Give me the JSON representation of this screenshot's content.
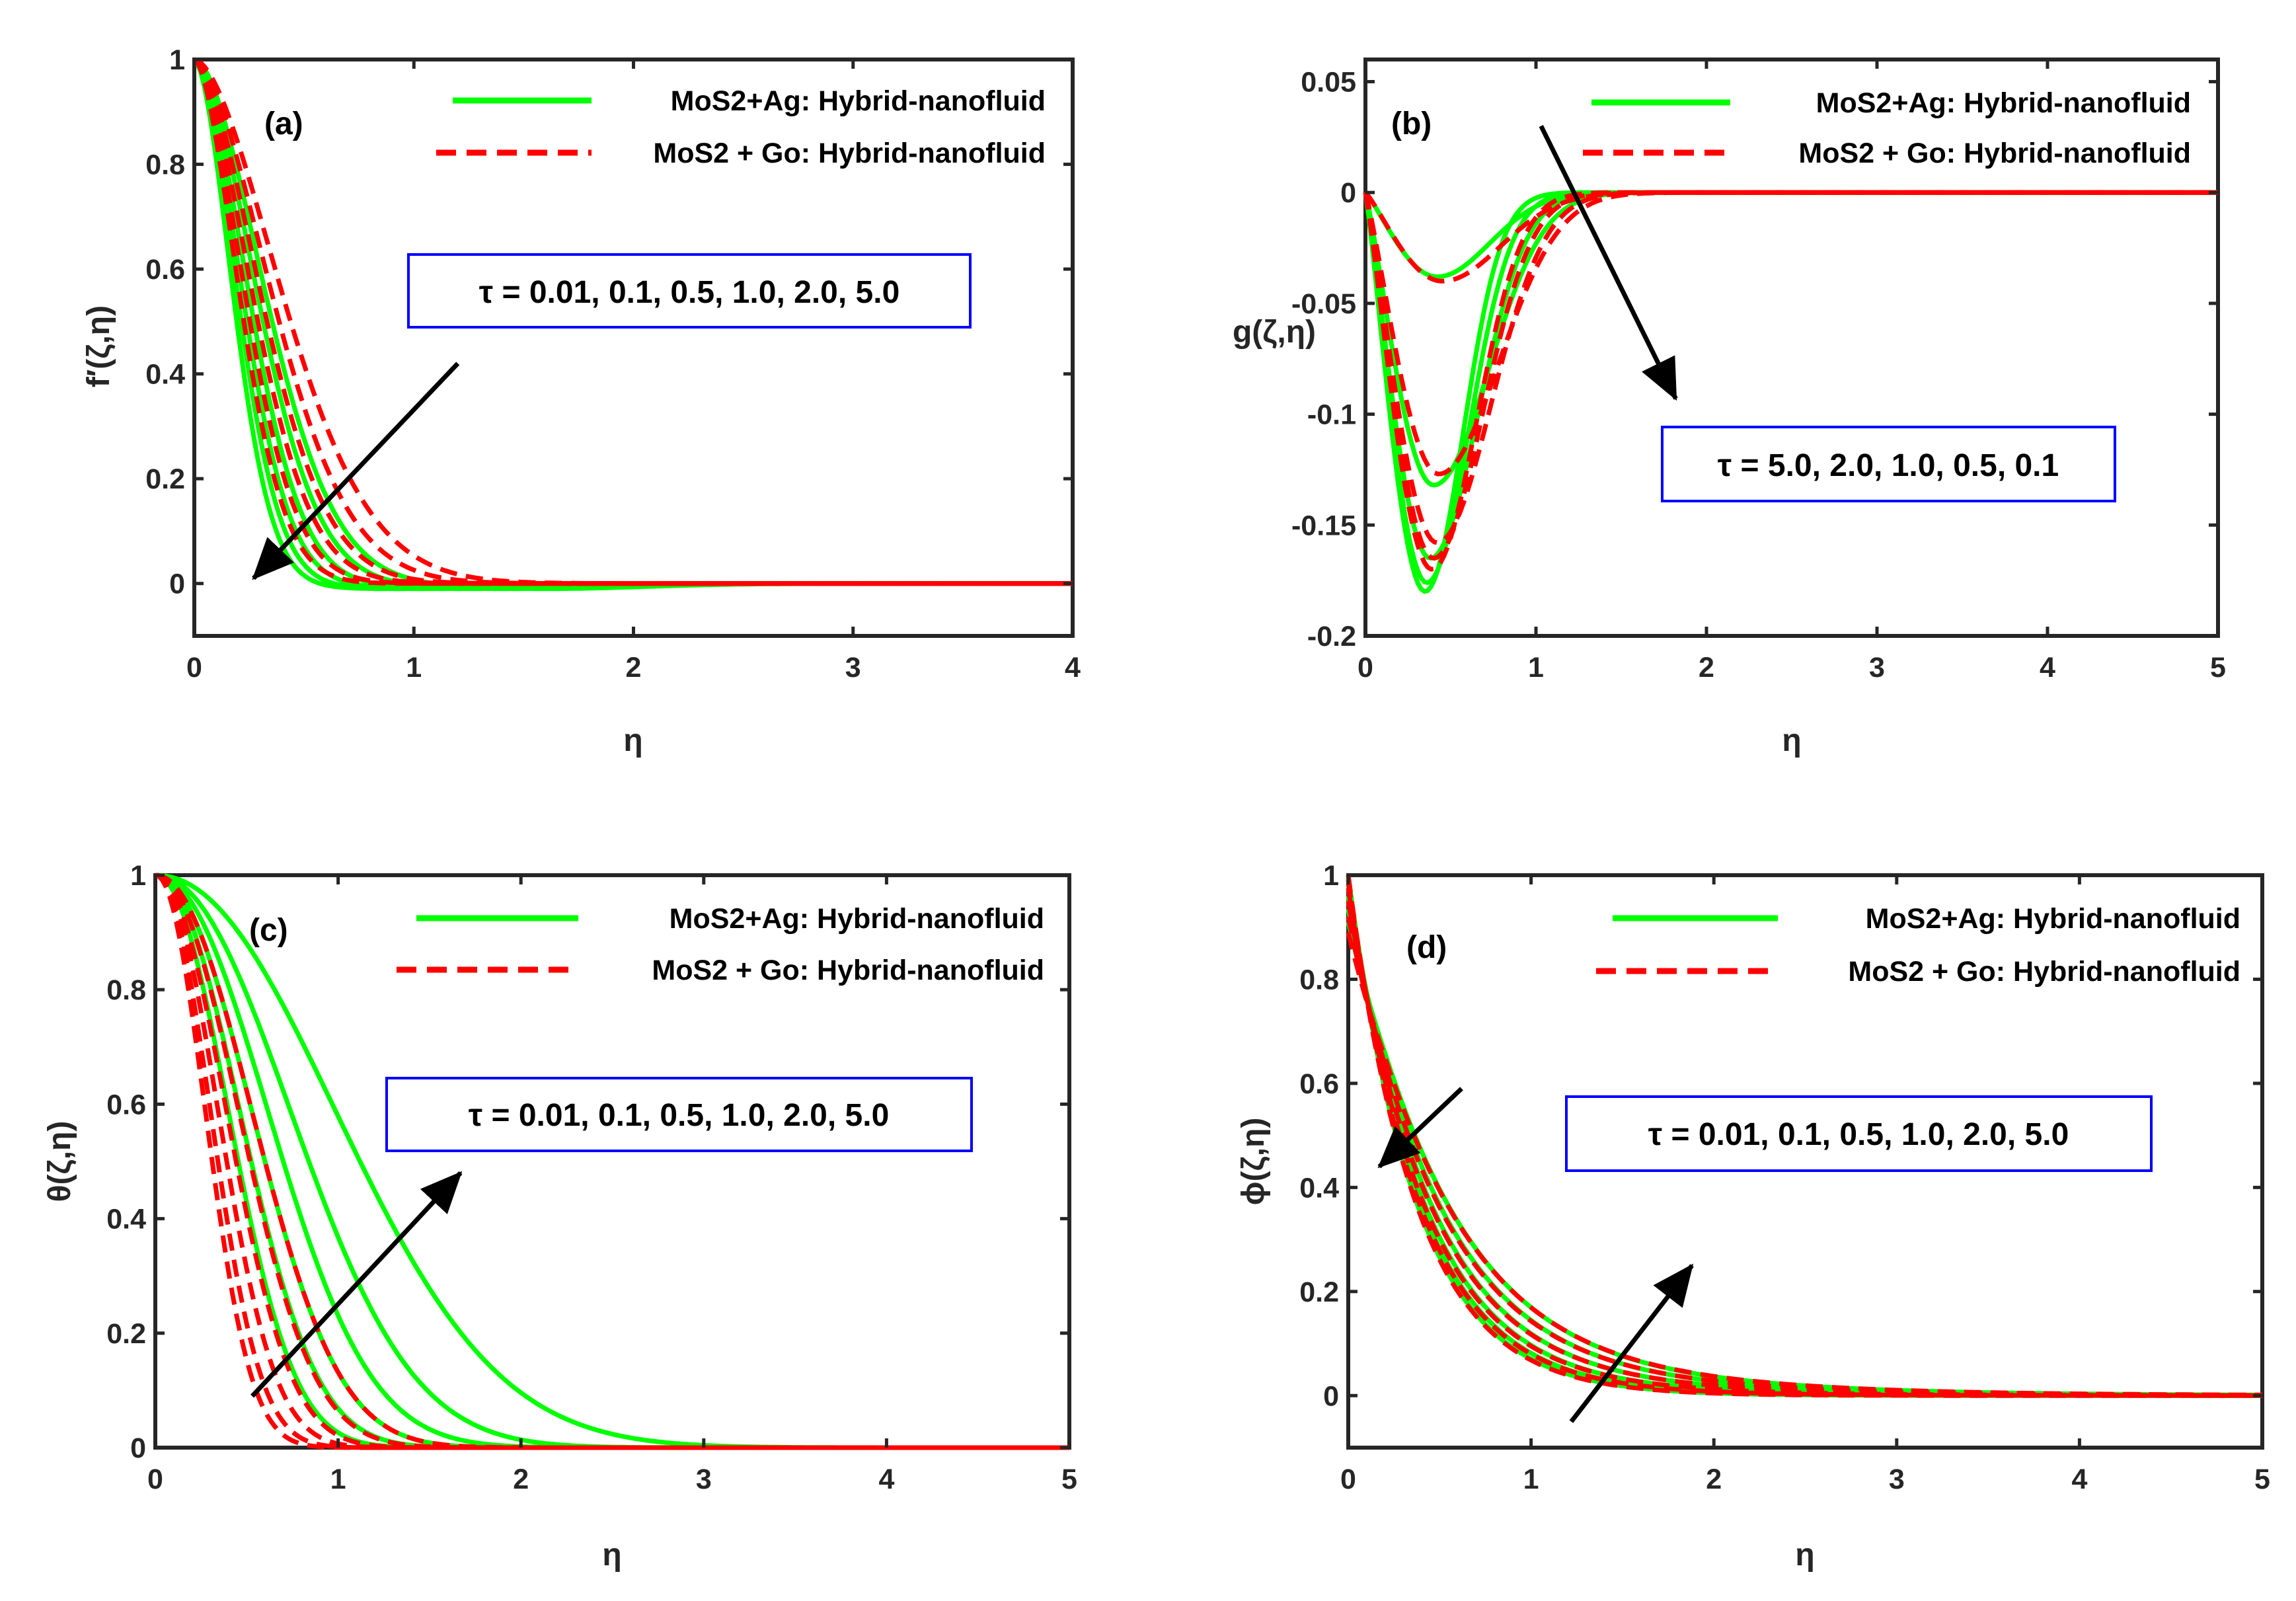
{
  "colors": {
    "hybrid_ag": "#00ff00",
    "hybrid_go": "#ff0000",
    "box_border": "#0000ff",
    "axis": "#262626",
    "arrow": "#000000"
  },
  "chart_data": [
    {
      "panel": "(a)",
      "type": "line",
      "xlabel": "η",
      "ylabel": "f′(ζ,η)",
      "xlim": [
        0,
        4
      ],
      "ylim": [
        -0.1,
        1
      ],
      "xticks": [
        "0",
        "1",
        "2",
        "3",
        "4"
      ],
      "yticks": [
        "0",
        "0.2",
        "0.4",
        "0.6",
        "0.8",
        "1"
      ],
      "ytick_values": [
        0,
        0.2,
        0.4,
        0.6,
        0.8,
        1
      ],
      "legend": [
        "MoS2+Ag: Hybrid-nanofluid",
        "MoS2 + Go: Hybrid-nanofluid"
      ],
      "legend_position": "top-right",
      "parameter_text": "τ = 0.01, 0.1, 0.5, 1.0, 2.0, 5.0",
      "tau": [
        0.01,
        0.1,
        0.5,
        1.0,
        2.0,
        5.0
      ],
      "annotation": "arrow toward lower-left (profiles decrease as τ increases)",
      "arrow": {
        "from": [
          1.2,
          0.42
        ],
        "to": [
          0.27,
          0.01
        ]
      },
      "series": [
        {
          "name": "MoS2+Ag: Hybrid-nanofluid",
          "style": "solid",
          "profile": {
            "kind": "decay",
            "y0": 1,
            "k": [
              2.3,
              2.6,
              3.0,
              3.4,
              3.8,
              4.2
            ],
            "p": 1.8,
            "neg": 0.01
          }
        },
        {
          "name": "MoS2 + Go: Hybrid-nanofluid",
          "style": "dashed",
          "profile": {
            "kind": "decay",
            "y0": 1,
            "k": [
              1.85,
              2.1,
              2.45,
              2.8,
              3.2,
              3.6
            ],
            "p": 1.75,
            "neg": 0.0
          }
        }
      ]
    },
    {
      "panel": "(b)",
      "type": "line",
      "xlabel": "η",
      "ylabel": "g(ζ,η)",
      "xlim": [
        0,
        5
      ],
      "ylim": [
        -0.2,
        0.06
      ],
      "xticks": [
        "0",
        "1",
        "2",
        "3",
        "4",
        "5"
      ],
      "yticks": [
        "-0.2",
        "-0.15",
        "-0.1",
        "-0.05",
        "0",
        "0.05"
      ],
      "ytick_values": [
        -0.2,
        -0.15,
        -0.1,
        -0.05,
        0,
        0.05
      ],
      "legend": [
        "MoS2+Ag: Hybrid-nanofluid",
        "MoS2 + Go: Hybrid-nanofluid"
      ],
      "legend_position": "top-right",
      "parameter_text": "τ = 5.0, 2.0, 1.0, 0.5, 0.1",
      "tau": [
        5.0,
        2.0,
        1.0,
        0.5,
        0.1
      ],
      "annotation": "arrow toward lower-right",
      "arrow": {
        "from": [
          1.03,
          0.03
        ],
        "to": [
          1.82,
          -0.093
        ]
      },
      "series": [
        {
          "name": "MoS2+Ag: Hybrid-nanofluid",
          "style": "solid",
          "profile": {
            "kind": "dip",
            "min": [
              -0.038,
              -0.132,
              -0.165,
              -0.176,
              -0.18
            ],
            "loc": [
              0.42,
              0.4,
              0.38,
              0.36,
              0.35
            ],
            "rise": [
              2.1,
              2.0,
              2.3,
              2.6,
              2.9
            ],
            "fall": 0.55
          }
        },
        {
          "name": "MoS2 + Go: Hybrid-nanofluid",
          "style": "dashed",
          "profile": {
            "kind": "dip",
            "min": [
              -0.04,
              -0.127,
              -0.158,
              -0.165,
              -0.17
            ],
            "loc": [
              0.45,
              0.43,
              0.42,
              0.4,
              0.39
            ],
            "rise": [
              1.8,
              1.75,
              1.95,
              2.15,
              2.35
            ],
            "fall": 0.6
          }
        }
      ]
    },
    {
      "panel": "(c)",
      "type": "line",
      "xlabel": "η",
      "ylabel": "θ(ζ,η)",
      "xlim": [
        0,
        5
      ],
      "ylim": [
        0,
        1
      ],
      "xticks": [
        "0",
        "1",
        "2",
        "3",
        "4",
        "5"
      ],
      "yticks": [
        "0",
        "0.2",
        "0.4",
        "0.6",
        "0.8",
        "1"
      ],
      "ytick_values": [
        0,
        0.2,
        0.4,
        0.6,
        0.8,
        1
      ],
      "legend": [
        "MoS2+Ag: Hybrid-nanofluid",
        "MoS2 + Go: Hybrid-nanofluid"
      ],
      "legend_position": "top-right",
      "parameter_text": "τ = 0.01, 0.1, 0.5, 1.0, 2.0, 5.0",
      "tau": [
        0.01,
        0.1,
        0.5,
        1.0,
        2.0,
        5.0
      ],
      "annotation": "arrow toward upper-right (profiles increase as τ increases)",
      "arrow": {
        "from": [
          0.53,
          0.09
        ],
        "to": [
          1.67,
          0.48
        ]
      },
      "series": [
        {
          "name": "MoS2+Ag: Hybrid-nanofluid",
          "style": "solid",
          "profile": {
            "kind": "decay",
            "y0": 1,
            "k": [
              1.85,
              1.6,
              1.4,
              1.2,
              1.0,
              0.75
            ],
            "p": 2.1,
            "neg": 0
          }
        },
        {
          "name": "MoS2 + Go: Hybrid-nanofluid",
          "style": "dashed",
          "profile": {
            "kind": "decay",
            "y0": 1,
            "k": [
              2.7,
              2.45,
              2.15,
              1.9,
              1.62,
              1.4
            ],
            "p": 2.1,
            "neg": 0
          }
        }
      ]
    },
    {
      "panel": "(d)",
      "type": "line",
      "xlabel": "η",
      "ylabel": "ϕ(ζ,η)",
      "xlim": [
        0,
        5
      ],
      "ylim": [
        -0.1,
        1
      ],
      "xticks": [
        "0",
        "1",
        "2",
        "3",
        "4",
        "5"
      ],
      "yticks": [
        "0",
        "0.2",
        "0.4",
        "0.6",
        "0.8",
        "1"
      ],
      "ytick_values": [
        0,
        0.2,
        0.4,
        0.6,
        0.8,
        1
      ],
      "legend": [
        "MoS2+Ag: Hybrid-nanofluid",
        "MoS2 + Go: Hybrid-nanofluid"
      ],
      "legend_position": "top-right",
      "parameter_text": "τ = 0.01, 0.1, 0.5, 1.0, 2.0, 5.0",
      "tau": [
        0.01,
        0.1,
        0.5,
        1.0,
        2.0,
        5.0
      ],
      "annotation": "arrows toward lower-left near wall and upper-right far from wall",
      "arrow": {
        "from": [
          0.62,
          0.59
        ],
        "to": [
          0.17,
          0.44
        ]
      },
      "arrow2": {
        "from": [
          1.22,
          -0.05
        ],
        "to": [
          1.88,
          0.25
        ]
      },
      "series": [
        {
          "name": "MoS2+Ag: Hybrid-nanofluid",
          "style": "solid",
          "profile": {
            "kind": "expo",
            "y0": 1,
            "k": [
              1.58,
              1.53,
              1.47,
              1.4,
              1.33,
              1.27
            ],
            "tail": [
              0.0,
              0.008,
              0.02,
              0.04,
              0.065,
              0.09
            ],
            "tailk": 1.0
          }
        },
        {
          "name": "MoS2 + Go: Hybrid-nanofluid",
          "style": "dashed",
          "profile": {
            "kind": "expo",
            "y0": 1,
            "k": [
              1.6,
              1.55,
              1.5,
              1.44,
              1.38,
              1.32
            ],
            "tail": [
              0.0,
              0.01,
              0.025,
              0.05,
              0.08,
              0.11
            ],
            "tailk": 1.05
          }
        }
      ]
    }
  ]
}
